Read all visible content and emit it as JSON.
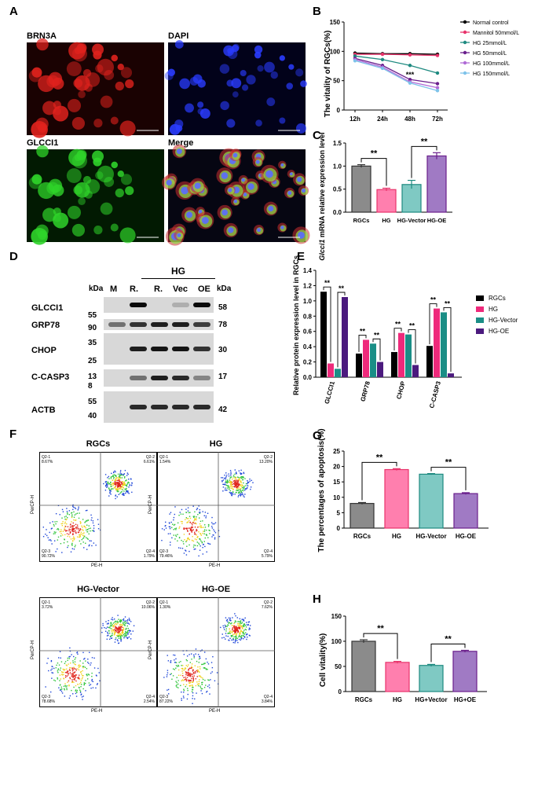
{
  "panels": {
    "A": "A",
    "B": "B",
    "C": "C",
    "D": "D",
    "E": "E",
    "F": "F",
    "G": "G",
    "H": "H"
  },
  "panelA": {
    "images": [
      {
        "label": "BRN3A",
        "color": "#e0221d",
        "bg": "#1a0202"
      },
      {
        "label": "DAPI",
        "color": "#2a3cff",
        "bg": "#02021a"
      },
      {
        "label": "GLCCI1",
        "color": "#2fd42a",
        "bg": "#021a02"
      },
      {
        "label": "Merge",
        "color": "#d9d640",
        "bg": "#060612"
      }
    ]
  },
  "panelB": {
    "ylabel": "The vitality of RGCs(%)",
    "categories": [
      "12h",
      "24h",
      "48h",
      "72h"
    ],
    "yticks": [
      "0",
      "50",
      "100",
      "150"
    ],
    "annotation": "***",
    "legend": [
      {
        "name": "Normal control",
        "color": "#000000"
      },
      {
        "name": "Mannitol 50mmol/L",
        "color": "#e8336b"
      },
      {
        "name": "HG 25mmol/L",
        "color": "#1e8a80"
      },
      {
        "name": "HG 50mmol/L",
        "color": "#6a1f8c"
      },
      {
        "name": "HG 100mmol/L",
        "color": "#b06bd6"
      },
      {
        "name": "HG 150mmol/L",
        "color": "#7ec3ea"
      }
    ]
  },
  "panelC": {
    "ylabel_italic": "Glcci1",
    "ylabel_rest": " mRNA relative expression level",
    "categories": [
      "RGCs",
      "HG",
      "HG-Vector",
      "HG-OE"
    ],
    "yticks": [
      "0.0",
      "0.5",
      "1.0",
      "1.5"
    ],
    "sig": [
      "**",
      "**"
    ]
  },
  "panelD": {
    "group_label": "HG",
    "kda_left": "kDa",
    "kda_right": "kDa",
    "lanes": [
      "M",
      "R.",
      "R.",
      "Vec",
      "OE"
    ],
    "rows": [
      {
        "label": "GLCCI1",
        "left": "55",
        "right": "58"
      },
      {
        "label": "GRP78",
        "left": "90",
        "right": "78"
      },
      {
        "label": "CHOP",
        "left": "35",
        "right": "30"
      },
      {
        "label": "",
        "left": "25",
        "right": ""
      },
      {
        "label": "C-CASP3",
        "left": "13",
        "right": "17"
      },
      {
        "label": "",
        "left": "8",
        "right": ""
      },
      {
        "label": "",
        "left": "55",
        "right": ""
      },
      {
        "label": "ACTB",
        "left": "40",
        "right": "42"
      }
    ]
  },
  "panelE": {
    "ylabel": "Relative protein expression level in RGCs",
    "groups": [
      "GLCCI1",
      "GRP78",
      "CHOP",
      "C-CASP3"
    ],
    "yticks": [
      "0.0",
      "0.2",
      "0.4",
      "0.6",
      "0.8",
      "1.0",
      "1.2",
      "1.4"
    ],
    "sig": "**",
    "legend": [
      {
        "name": "RGCs",
        "color": "#000000"
      },
      {
        "name": "HG",
        "color": "#ee2a7b"
      },
      {
        "name": "HG-Vector",
        "color": "#1a8e86"
      },
      {
        "name": "HG-OE",
        "color": "#4b1a7e"
      }
    ]
  },
  "panelF": {
    "plots": [
      {
        "title": "RGCs",
        "q1": "Q2-1\n8.67%",
        "q2": "Q2-2\n6.61%",
        "q3": "Q2-3\n90.72%",
        "q4": "Q2-4\n1.79%"
      },
      {
        "title": "HG",
        "q1": "Q2-1\n1.54%",
        "q2": "Q2-2\n13.20%",
        "q3": "Q2-3\n79.46%",
        "q4": "Q2-4\n5.79%"
      },
      {
        "title": "HG-Vector",
        "q1": "Q2-1\n3.72%",
        "q2": "Q2-2\n10.06%",
        "q3": "Q2-3\n78.68%",
        "q4": "Q2-4\n2.54%"
      },
      {
        "title": "HG-OE",
        "q1": "Q2-1\n1.30%",
        "q2": "Q2-2\n7.62%",
        "q3": "Q2-3\n87.22%",
        "q4": "Q2-4\n3.84%"
      }
    ],
    "xlabel": "PE-H",
    "ylabel": "PerCP-H"
  },
  "panelG": {
    "ylabel": "The percentages of apoptosis(%)",
    "categories": [
      "RGCs",
      "HG",
      "HG-Vector",
      "HG-OE"
    ],
    "yticks": [
      "0",
      "5",
      "10",
      "15",
      "20",
      "25"
    ],
    "sig": [
      "**",
      "**"
    ]
  },
  "panelH": {
    "ylabel": "Cell vitality(%)",
    "categories": [
      "RGCs",
      "HG",
      "HG+Vector",
      "HG+OE"
    ],
    "yticks": [
      "0",
      "50",
      "100",
      "150"
    ],
    "sig": [
      "**",
      "**"
    ]
  },
  "chart_data": [
    {
      "type": "line",
      "panel": "B",
      "x": [
        "12h",
        "24h",
        "48h",
        "72h"
      ],
      "ylim": [
        0,
        150
      ],
      "series": [
        {
          "name": "Normal control",
          "values": [
            97,
            96,
            96,
            95
          ]
        },
        {
          "name": "Mannitol 50mmol/L",
          "values": [
            95,
            95,
            94,
            93
          ]
        },
        {
          "name": "HG 25mmol/L",
          "values": [
            92,
            86,
            76,
            63
          ]
        },
        {
          "name": "HG 50mmol/L",
          "values": [
            88,
            76,
            52,
            45
          ]
        },
        {
          "name": "HG 100mmol/L",
          "values": [
            86,
            73,
            48,
            38
          ]
        },
        {
          "name": "HG 150mmol/L",
          "values": [
            84,
            71,
            46,
            33
          ]
        }
      ]
    },
    {
      "type": "bar",
      "panel": "C",
      "categories": [
        "RGCs",
        "HG",
        "HG-Vector",
        "HG-OE"
      ],
      "values": [
        1.0,
        0.49,
        0.6,
        1.22
      ],
      "errors": [
        0.03,
        0.03,
        0.09,
        0.07
      ],
      "colors": [
        "#8b8b8b",
        "#ff7fae",
        "#7fc9c3",
        "#a07ac4"
      ],
      "ylim": [
        0,
        1.5
      ]
    },
    {
      "type": "bar",
      "panel": "E",
      "categories": [
        "GLCCI1",
        "GRP78",
        "CHOP",
        "C-CASP3"
      ],
      "ylim": [
        0,
        1.4
      ],
      "series": [
        {
          "name": "RGCs",
          "values": [
            1.12,
            0.31,
            0.33,
            0.41
          ]
        },
        {
          "name": "HG",
          "values": [
            0.18,
            0.49,
            0.58,
            0.9
          ]
        },
        {
          "name": "HG-Vector",
          "values": [
            0.11,
            0.44,
            0.56,
            0.85
          ]
        },
        {
          "name": "HG-OE",
          "values": [
            1.05,
            0.2,
            0.16,
            0.05
          ]
        }
      ]
    },
    {
      "type": "bar",
      "panel": "G",
      "categories": [
        "RGCs",
        "HG",
        "HG-Vector",
        "HG-OE"
      ],
      "values": [
        8.0,
        19.0,
        17.5,
        11.2
      ],
      "errors": [
        0.3,
        0.3,
        0.2,
        0.3
      ],
      "colors": [
        "#8b8b8b",
        "#ff7fae",
        "#7fc9c3",
        "#a07ac4"
      ],
      "ylim": [
        0,
        25
      ]
    },
    {
      "type": "bar",
      "panel": "H",
      "categories": [
        "RGCs",
        "HG",
        "HG+Vector",
        "HG+OE"
      ],
      "values": [
        100,
        58,
        52,
        80
      ],
      "errors": [
        3,
        2,
        2,
        2
      ],
      "colors": [
        "#8b8b8b",
        "#ff7fae",
        "#7fc9c3",
        "#a07ac4"
      ],
      "ylim": [
        0,
        150
      ]
    }
  ]
}
